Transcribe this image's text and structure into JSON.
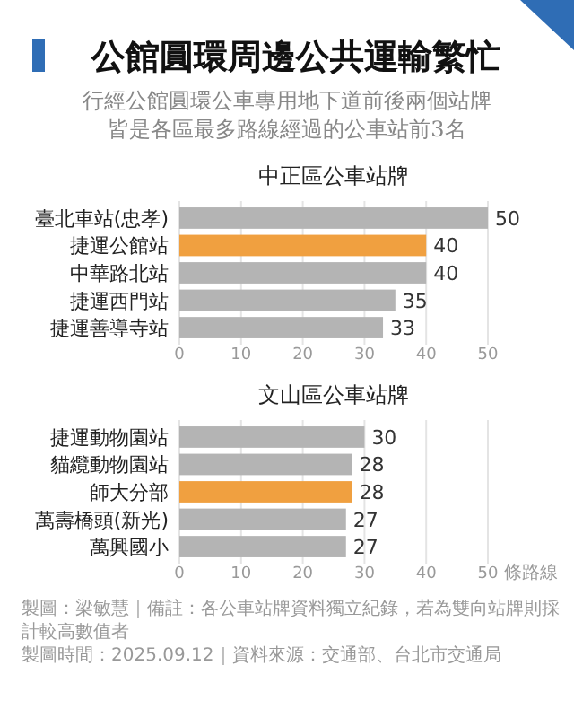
{
  "chart_data": [
    {
      "type": "other",
      "title": "公館圓環周邊公共運輸繁忙",
      "subtitle": "行經公館圓環公車專用地下道前後兩個站牌皆是各區最多路線經過的公車站前3名"
    },
    {
      "type": "bar",
      "orientation": "horizontal",
      "title": "中正區公車站牌",
      "categories": [
        "臺北車站(忠孝)",
        "捷運公館站",
        "中華路北站",
        "捷運西門站",
        "捷運善導寺站"
      ],
      "values": [
        50,
        40,
        40,
        35,
        33
      ],
      "colors": [
        "#b4b4b4",
        "#f0a040",
        "#b4b4b4",
        "#b4b4b4",
        "#b4b4b4"
      ],
      "xlim": [
        0,
        50
      ],
      "xticks": [
        0,
        10,
        20,
        30,
        40,
        50
      ],
      "grid": "x",
      "data_labels": true
    },
    {
      "type": "bar",
      "orientation": "horizontal",
      "title": "文山區公車站牌",
      "xlabel": "條路線",
      "categories": [
        "捷運動物園站",
        "貓纜動物園站",
        "師大分部",
        "萬壽橋頭(新光)",
        "萬興國小"
      ],
      "values": [
        30,
        28,
        28,
        27,
        27
      ],
      "colors": [
        "#b4b4b4",
        "#b4b4b4",
        "#f0a040",
        "#b4b4b4",
        "#b4b4b4"
      ],
      "xlim": [
        0,
        50
      ],
      "xticks": [
        0,
        10,
        20,
        30,
        40,
        50
      ],
      "grid": "x",
      "data_labels": true,
      "annotations": [
        "製圖：梁敏慧｜備註：各公車站牌資料獨立紀錄，若為雙向站牌則採計較高數值者",
        "製圖時間：2025.09.12｜資料來源：交通部、台北市交通局"
      ]
    }
  ]
}
